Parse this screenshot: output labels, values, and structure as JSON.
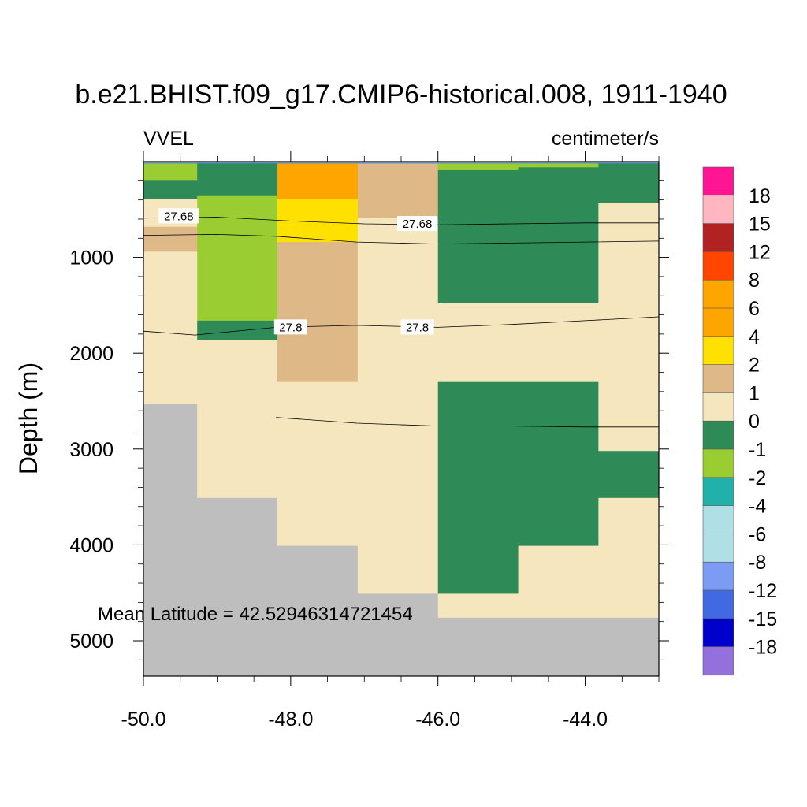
{
  "chart_data": {
    "type": "heatmap",
    "title": "b.e21.BHIST.f09_g17.CMIP6-historical.008, 1911-1940",
    "left_label": "VVEL",
    "right_label": "centimeter/s",
    "xlabel": "",
    "ylabel": "Depth (m)",
    "xlim": [
      -50.0,
      -43.0
    ],
    "ylim": [
      5370,
      0
    ],
    "x_ticks": [
      -50.0,
      -48.0,
      -46.0,
      -44.0
    ],
    "x_tick_labels": [
      "-50.0",
      "-48.0",
      "-46.0",
      "-44.0"
    ],
    "y_ticks": [
      1000,
      2000,
      3000,
      4000,
      5000
    ],
    "y_tick_labels": [
      "1000",
      "2000",
      "3000",
      "4000",
      "5000"
    ],
    "annotation": "Mean Latitude = 42.52946314721454",
    "colors": {
      "cream": "#f5e6be",
      "darkgreen": "#2e8b57",
      "yellowgreen": "#9acd32",
      "tan": "#deb887",
      "orange": "#ffa500",
      "gold": "#ffe100",
      "land": "#bebebe",
      "seafloor": "#bebebe",
      "surface_blue": "#5b8ac8"
    },
    "x_edges": [
      -50.0,
      -49.27,
      -48.18,
      -47.09,
      -46.0,
      -44.91,
      -43.82,
      -43.0
    ],
    "columns": [
      {
        "lon_start": -50.0,
        "lon_end": -49.27,
        "cells": [
          {
            "top": 0,
            "bottom": 20,
            "color": "surface_blue"
          },
          {
            "top": 20,
            "bottom": 200,
            "color": "yellowgreen"
          },
          {
            "top": 200,
            "bottom": 390,
            "color": "darkgreen"
          },
          {
            "top": 390,
            "bottom": 680,
            "color": "cream"
          },
          {
            "top": 680,
            "bottom": 940,
            "color": "tan"
          },
          {
            "top": 940,
            "bottom": 2530,
            "color": "cream"
          },
          {
            "top": 2530,
            "bottom": 5370,
            "color": "land"
          }
        ]
      },
      {
        "lon_start": -49.27,
        "lon_end": -48.18,
        "cells": [
          {
            "top": 0,
            "bottom": 20,
            "color": "surface_blue"
          },
          {
            "top": 20,
            "bottom": 360,
            "color": "darkgreen"
          },
          {
            "top": 360,
            "bottom": 1660,
            "color": "yellowgreen"
          },
          {
            "top": 1660,
            "bottom": 1860,
            "color": "darkgreen"
          },
          {
            "top": 1860,
            "bottom": 3510,
            "color": "cream"
          },
          {
            "top": 3510,
            "bottom": 5370,
            "color": "land"
          }
        ]
      },
      {
        "lon_start": -48.18,
        "lon_end": -47.09,
        "cells": [
          {
            "top": 0,
            "bottom": 20,
            "color": "surface_blue"
          },
          {
            "top": 20,
            "bottom": 390,
            "color": "orange"
          },
          {
            "top": 390,
            "bottom": 840,
            "color": "gold"
          },
          {
            "top": 840,
            "bottom": 2300,
            "color": "tan"
          },
          {
            "top": 2300,
            "bottom": 4010,
            "color": "cream"
          },
          {
            "top": 4010,
            "bottom": 5370,
            "color": "land"
          }
        ]
      },
      {
        "lon_start": -47.09,
        "lon_end": -46.0,
        "cells": [
          {
            "top": 0,
            "bottom": 20,
            "color": "surface_blue"
          },
          {
            "top": 20,
            "bottom": 590,
            "color": "tan"
          },
          {
            "top": 590,
            "bottom": 4510,
            "color": "cream"
          },
          {
            "top": 4510,
            "bottom": 5370,
            "color": "land"
          }
        ]
      },
      {
        "lon_start": -46.0,
        "lon_end": -44.91,
        "cells": [
          {
            "top": 0,
            "bottom": 20,
            "color": "surface_blue"
          },
          {
            "top": 20,
            "bottom": 90,
            "color": "yellowgreen"
          },
          {
            "top": 90,
            "bottom": 1480,
            "color": "darkgreen"
          },
          {
            "top": 1480,
            "bottom": 2300,
            "color": "cream"
          },
          {
            "top": 2300,
            "bottom": 4510,
            "color": "darkgreen"
          },
          {
            "top": 4510,
            "bottom": 4760,
            "color": "cream"
          },
          {
            "top": 4760,
            "bottom": 5370,
            "color": "seafloor"
          }
        ]
      },
      {
        "lon_start": -44.91,
        "lon_end": -43.82,
        "cells": [
          {
            "top": 0,
            "bottom": 20,
            "color": "surface_blue"
          },
          {
            "top": 20,
            "bottom": 60,
            "color": "yellowgreen"
          },
          {
            "top": 60,
            "bottom": 1480,
            "color": "darkgreen"
          },
          {
            "top": 1480,
            "bottom": 2300,
            "color": "cream"
          },
          {
            "top": 2300,
            "bottom": 4010,
            "color": "darkgreen"
          },
          {
            "top": 4010,
            "bottom": 4760,
            "color": "cream"
          },
          {
            "top": 4760,
            "bottom": 5370,
            "color": "seafloor"
          }
        ]
      },
      {
        "lon_start": -43.82,
        "lon_end": -43.0,
        "cells": [
          {
            "top": 0,
            "bottom": 20,
            "color": "surface_blue"
          },
          {
            "top": 20,
            "bottom": 430,
            "color": "darkgreen"
          },
          {
            "top": 430,
            "bottom": 3020,
            "color": "cream"
          },
          {
            "top": 3020,
            "bottom": 3510,
            "color": "darkgreen"
          },
          {
            "top": 3510,
            "bottom": 4760,
            "color": "cream"
          },
          {
            "top": 4760,
            "bottom": 5370,
            "color": "seafloor"
          }
        ]
      }
    ],
    "contours": [
      {
        "points": [
          [
            -50.0,
            590
          ],
          [
            -49.0,
            580
          ],
          [
            -48.0,
            620
          ],
          [
            -47.0,
            650
          ],
          [
            -46.0,
            660
          ],
          [
            -45.0,
            650
          ],
          [
            -44.0,
            640
          ],
          [
            -43.0,
            640
          ]
        ],
        "labels": [
          {
            "text": "27.68",
            "x": -49.52,
            "y": 570
          },
          {
            "text": "27.68",
            "x": -46.28,
            "y": 650
          }
        ]
      },
      {
        "points": [
          [
            -50.0,
            770
          ],
          [
            -49.0,
            760
          ],
          [
            -48.2,
            780
          ],
          [
            -47.1,
            840
          ],
          [
            -46.0,
            860
          ],
          [
            -45.0,
            850
          ],
          [
            -44.0,
            840
          ],
          [
            -43.0,
            830
          ]
        ],
        "labels": []
      },
      {
        "points": [
          [
            -50.0,
            1770
          ],
          [
            -49.3,
            1810
          ],
          [
            -48.2,
            1730
          ],
          [
            -47.1,
            1710
          ],
          [
            -46.0,
            1730
          ],
          [
            -45.0,
            1700
          ],
          [
            -44.0,
            1660
          ],
          [
            -43.0,
            1620
          ]
        ],
        "labels": [
          {
            "text": "27.8",
            "x": -48.0,
            "y": 1730
          },
          {
            "text": "27.8",
            "x": -46.28,
            "y": 1730
          }
        ]
      },
      {
        "points": [
          [
            -48.2,
            2670
          ],
          [
            -47.1,
            2730
          ],
          [
            -46.0,
            2760
          ],
          [
            -45.0,
            2760
          ],
          [
            -44.0,
            2770
          ],
          [
            -43.0,
            2770
          ]
        ],
        "labels": []
      }
    ],
    "colorbar": {
      "levels": [
        "18",
        "15",
        "12",
        "8",
        "6",
        "4",
        "2",
        "1",
        "0",
        "-1",
        "-2",
        "-4",
        "-6",
        "-8",
        "-12",
        "-15",
        "-18"
      ],
      "colors": [
        "#ff1493",
        "#ffb6c1",
        "#b22222",
        "#ff4500",
        "#ffa500",
        "#ffa500",
        "#ffe100",
        "#deb887",
        "#f5e6be",
        "#2e8b57",
        "#9acd32",
        "#20b2aa",
        "#b0e0e6",
        "#b0e0e6",
        "#7b9cf2",
        "#4169e1",
        "#0000cd",
        "#9370db"
      ]
    }
  }
}
